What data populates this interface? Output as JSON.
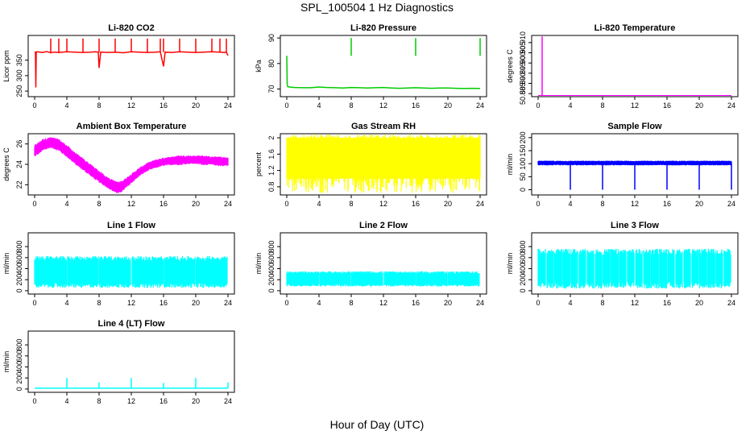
{
  "figure": {
    "title": "SPL_100504  1 Hz Diagnostics",
    "xlabel": "Hour of Day (UTC)"
  },
  "chart_data": [
    {
      "type": "line",
      "title": "Li-820 CO2",
      "ylabel": "Licor ppm",
      "color": "#ff0000",
      "xlim": [
        0,
        24
      ],
      "ylim": [
        232,
        430
      ],
      "xticks": [
        0,
        4,
        8,
        12,
        16,
        20,
        24
      ],
      "yticks": [
        250,
        300,
        350
      ],
      "series": [
        {
          "x": [
            0,
            0.1,
            0.15,
            0.2,
            0.3,
            1,
            1.5,
            2,
            2.4,
            3,
            4,
            5,
            6,
            7,
            7.5,
            7.9,
            8,
            8.2,
            9,
            10,
            11,
            12,
            13,
            14,
            15,
            15.6,
            16,
            16.2,
            17,
            18,
            19,
            20,
            21,
            22,
            23,
            23.5,
            23.8,
            24
          ],
          "y": [
            375,
            376,
            262,
            376,
            377,
            375,
            378,
            374,
            376,
            375,
            377,
            376,
            375,
            376,
            377,
            376,
            325,
            376,
            375,
            376,
            374,
            377,
            376,
            375,
            376,
            377,
            330,
            376,
            375,
            377,
            376,
            375,
            376,
            377,
            376,
            375,
            376,
            365
          ]
        }
      ],
      "spikes": [
        2.0,
        3.0,
        4.0,
        6.0,
        8.0,
        10.0,
        12.0,
        14.0,
        15.6,
        16.0,
        18.0,
        20.0,
        22.0,
        23.0,
        23.8
      ],
      "spike_top": 420
    },
    {
      "type": "line",
      "title": "Li-820 Pressure",
      "ylabel": "kPa",
      "color": "#00cc00",
      "xlim": [
        0,
        24
      ],
      "ylim": [
        67,
        91
      ],
      "xticks": [
        0,
        4,
        8,
        12,
        16,
        20,
        24
      ],
      "yticks": [
        70,
        80,
        90
      ],
      "series": [
        {
          "x": [
            0,
            0.05,
            0.1,
            0.3,
            1,
            2,
            3,
            4,
            5,
            6,
            7,
            8,
            9,
            10,
            11,
            12,
            13,
            14,
            15,
            16,
            17,
            18,
            19,
            20,
            21,
            22,
            23,
            24
          ],
          "y": [
            83,
            72,
            71,
            70.8,
            70.6,
            70.5,
            70.5,
            70.8,
            70.6,
            70.5,
            70.4,
            70.6,
            70.5,
            70.4,
            70.5,
            70.6,
            70.4,
            70.3,
            70.4,
            70.5,
            70.4,
            70.3,
            70.4,
            70.4,
            70.3,
            70.2,
            70.3,
            70.2
          ]
        }
      ],
      "spikes": [
        8.0,
        16.0,
        24.0
      ],
      "spike_top": 90
    },
    {
      "type": "line",
      "title": "Li-820 Temperature",
      "ylabel": "degrees C",
      "color": "#ff00ff",
      "xlim": [
        0,
        24
      ],
      "ylim": [
        50.8835,
        50.9135
      ],
      "xticks": [
        0,
        4,
        8,
        12,
        16,
        20,
        24
      ],
      "yticks": [
        50.885,
        50.89,
        50.895,
        50.9,
        50.905,
        50.91
      ],
      "yticklabels": [
        "50.885",
        "50.890",
        "50.895",
        "50.900",
        "50.905",
        "50.910"
      ],
      "series": [
        {
          "x": [
            0,
            24
          ],
          "y": [
            50.884,
            50.884
          ]
        }
      ],
      "spikes": [
        0.5
      ],
      "spike_top": 50.913
    },
    {
      "type": "line",
      "title": "Ambient Box Temperature",
      "ylabel": "degrees C",
      "color": "#ff00ff",
      "xlim": [
        0,
        24
      ],
      "ylim": [
        21,
        27
      ],
      "xticks": [
        0,
        4,
        8,
        12,
        16,
        20,
        24
      ],
      "yticks": [
        22,
        24,
        26
      ],
      "band": {
        "x": [
          0,
          1,
          2,
          3,
          4,
          5,
          6,
          7,
          8,
          9,
          10,
          10.5,
          11,
          12,
          13,
          14,
          15,
          16,
          17,
          18,
          19,
          20,
          21,
          22,
          23,
          24
        ],
        "low": [
          24.8,
          25.4,
          25.7,
          25.4,
          24.8,
          24.1,
          23.5,
          22.9,
          22.3,
          21.8,
          21.3,
          21.2,
          21.5,
          22.2,
          22.9,
          23.4,
          23.7,
          23.9,
          24.0,
          24.0,
          24.1,
          24.1,
          24.0,
          24.0,
          23.9,
          23.9
        ],
        "high": [
          25.8,
          26.4,
          26.6,
          26.4,
          25.8,
          25.1,
          24.5,
          23.9,
          23.3,
          22.7,
          22.3,
          22.2,
          22.4,
          23.0,
          23.6,
          24.1,
          24.4,
          24.6,
          24.7,
          24.8,
          24.8,
          24.8,
          24.8,
          24.7,
          24.7,
          24.6
        ]
      }
    },
    {
      "type": "line",
      "title": "Gas Stream RH",
      "ylabel": "percent",
      "color": "#ffff00",
      "xlim": [
        0,
        24
      ],
      "ylim": [
        0.6,
        2.1
      ],
      "xticks": [
        0,
        4,
        8,
        12,
        16,
        20,
        24
      ],
      "yticks": [
        0.8,
        1.2,
        1.6,
        2.0
      ],
      "band": {
        "x": [
          0,
          24
        ],
        "low": [
          1.0,
          1.0
        ],
        "high": [
          2.0,
          2.0
        ]
      },
      "noise_range": [
        0.65,
        2.08
      ]
    },
    {
      "type": "line",
      "title": "Sample Flow",
      "ylabel": "ml/min",
      "color": "#0000ff",
      "xlim": [
        0,
        24
      ],
      "ylim": [
        -20,
        215
      ],
      "xticks": [
        0,
        4,
        8,
        12,
        16,
        20,
        24
      ],
      "yticks": [
        0,
        50,
        100,
        150,
        200
      ],
      "band": {
        "x": [
          0,
          24
        ],
        "low": [
          95,
          95
        ],
        "high": [
          110,
          110
        ]
      },
      "dips": [
        4.0,
        8.0,
        12.0,
        16.0,
        20.0,
        24.0
      ],
      "dip_low": 0
    },
    {
      "type": "area",
      "title": "Line 1 Flow",
      "ylabel": "ml/min",
      "color": "#00ffff",
      "xlim": [
        0,
        24
      ],
      "ylim": [
        -60,
        1050
      ],
      "xticks": [
        0,
        4,
        8,
        12,
        16,
        20,
        24
      ],
      "yticks": [
        0,
        200,
        400,
        600,
        800
      ],
      "band": {
        "x": [
          0,
          24
        ],
        "low": [
          100,
          100
        ],
        "high": [
          580,
          580
        ]
      },
      "gaps": [
        4.0,
        8.0,
        12.0,
        16.0,
        20.0,
        24.0
      ]
    },
    {
      "type": "area",
      "title": "Line 2 Flow",
      "ylabel": "ml/min",
      "color": "#00ffff",
      "xlim": [
        0,
        24
      ],
      "ylim": [
        -60,
        1050
      ],
      "xticks": [
        0,
        4,
        8,
        12,
        16,
        20,
        24
      ],
      "yticks": [
        0,
        200,
        400,
        600,
        800
      ],
      "band": {
        "x": [
          0,
          24
        ],
        "low": [
          100,
          100
        ],
        "high": [
          330,
          330
        ]
      },
      "gaps": [
        4.0,
        8.0,
        12.0,
        16.0,
        20.0,
        24.0
      ]
    },
    {
      "type": "area",
      "title": "Line 3 Flow",
      "ylabel": "ml/min",
      "color": "#00ffff",
      "xlim": [
        0,
        24
      ],
      "ylim": [
        -60,
        1050
      ],
      "xticks": [
        0,
        4,
        8,
        12,
        16,
        20,
        24
      ],
      "yticks": [
        0,
        200,
        400,
        600,
        800
      ],
      "band": {
        "x": [
          0,
          24
        ],
        "low": [
          100,
          100
        ],
        "high": [
          700,
          700
        ]
      },
      "gaps": [
        1.0,
        2.0,
        3.0,
        4.0,
        5.0,
        6.0,
        7.0,
        8.0,
        9.0,
        10.0,
        11.0,
        12.0,
        13.0,
        14.0,
        15.0,
        16.0,
        17.0,
        18.0,
        19.0,
        20.0,
        21.0,
        22.0,
        23.0,
        24.0
      ]
    },
    {
      "type": "line",
      "title": "Line 4 (LT) Flow",
      "ylabel": "ml/min",
      "color": "#00ffff",
      "xlim": [
        0,
        24
      ],
      "ylim": [
        -60,
        1050
      ],
      "xticks": [
        0,
        4,
        8,
        12,
        16,
        20,
        24
      ],
      "yticks": [
        0,
        200,
        400,
        600,
        800
      ],
      "series": [
        {
          "x": [
            0,
            24
          ],
          "y": [
            15,
            15
          ]
        }
      ],
      "spikes": [
        4.0,
        8.0,
        12.0,
        16.0,
        20.0,
        24.0
      ],
      "spike_heights": [
        200,
        120,
        200,
        110,
        200,
        120
      ]
    }
  ]
}
